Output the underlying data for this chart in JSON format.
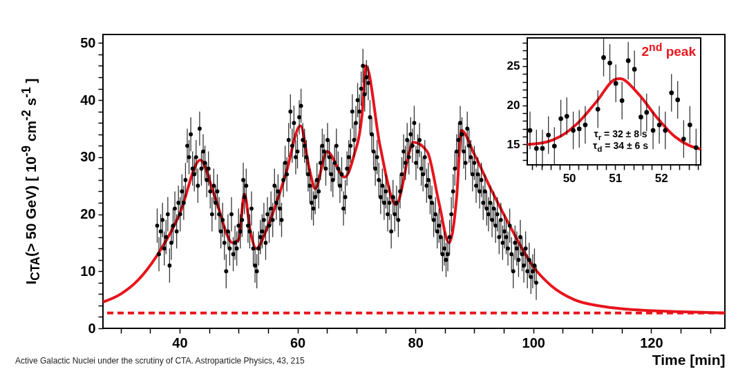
{
  "chart_data": [
    {
      "type": "scatter",
      "xlabel": "Time [min]",
      "ylabel": "I$_{CTA}$(> 50 GeV) [ 10$^{-9}$ cm$^{-2}$ s$^{-1}$ ]",
      "xlim": [
        27,
        132.5
      ],
      "ylim": [
        0,
        51.5
      ],
      "xticks": [
        {
          "value": 30,
          "label": null
        },
        {
          "value": 35,
          "label": null
        },
        40,
        {
          "value": 45,
          "label": null
        },
        {
          "value": 50,
          "label": null
        },
        {
          "value": 55,
          "label": null
        },
        60,
        {
          "value": 65,
          "label": null
        },
        {
          "value": 70,
          "label": null
        },
        {
          "value": 75,
          "label": null
        },
        80,
        {
          "value": 85,
          "label": null
        },
        {
          "value": 90,
          "label": null
        },
        {
          "value": 95,
          "label": null
        },
        100,
        {
          "value": 105,
          "label": null
        },
        {
          "value": 110,
          "label": null
        },
        {
          "value": 115,
          "label": null
        },
        120,
        {
          "value": 125,
          "label": null
        },
        {
          "value": 130,
          "label": null
        }
      ],
      "yticks": [
        0,
        {
          "value": 2,
          "label": null
        },
        {
          "value": 4,
          "label": null
        },
        {
          "value": 6,
          "label": null
        },
        {
          "value": 8,
          "label": null
        },
        10,
        {
          "value": 12,
          "label": null
        },
        {
          "value": 14,
          "label": null
        },
        {
          "value": 16,
          "label": null
        },
        {
          "value": 18,
          "label": null
        },
        20,
        {
          "value": 22,
          "label": null
        },
        {
          "value": 24,
          "label": null
        },
        {
          "value": 26,
          "label": null
        },
        {
          "value": 28,
          "label": null
        },
        30,
        {
          "value": 32,
          "label": null
        },
        {
          "value": 34,
          "label": null
        },
        {
          "value": 36,
          "label": null
        },
        {
          "value": 38,
          "label": null
        },
        40,
        {
          "value": 42,
          "label": null
        },
        {
          "value": 44,
          "label": null
        },
        {
          "value": 46,
          "label": null
        },
        {
          "value": 48,
          "label": null
        },
        50
      ],
      "series": [
        {
          "type": "scatter",
          "marker": "circle",
          "color": "#000000",
          "x": [
            36.2,
            36.5,
            36.8,
            37.1,
            37.4,
            37.7,
            38.0,
            38.3,
            38.6,
            38.9,
            39.2,
            39.5,
            39.8,
            40.1,
            40.4,
            40.7,
            41.0,
            41.3,
            41.6,
            41.9,
            42.2,
            42.5,
            42.8,
            43.1,
            43.4,
            43.7,
            44.0,
            44.3,
            44.6,
            44.9,
            45.2,
            45.5,
            45.8,
            46.1,
            46.4,
            46.7,
            47.0,
            47.3,
            47.6,
            47.9,
            48.2,
            48.5,
            48.8,
            49.1,
            49.4,
            49.7,
            50.0,
            50.3,
            50.6,
            50.8,
            51.0,
            51.3,
            51.6,
            51.9,
            52.2,
            52.5,
            52.8,
            53.1,
            53.4,
            53.7,
            54.0,
            54.3,
            54.6,
            54.9,
            55.2,
            55.5,
            55.8,
            56.1,
            56.4,
            56.7,
            57.0,
            57.3,
            57.6,
            57.9,
            58.2,
            58.5,
            58.8,
            59.1,
            59.4,
            59.7,
            60.0,
            60.3,
            60.6,
            60.9,
            61.2,
            61.5,
            61.8,
            62.1,
            62.4,
            62.7,
            63.0,
            63.3,
            63.6,
            63.9,
            64.2,
            64.5,
            64.8,
            65.1,
            65.4,
            65.7,
            66.0,
            66.3,
            66.6,
            66.9,
            67.2,
            67.5,
            67.8,
            68.1,
            68.4,
            68.7,
            69.0,
            69.3,
            69.6,
            69.9,
            70.2,
            70.5,
            70.8,
            71.1,
            71.4,
            71.7,
            72.0,
            72.3,
            72.6,
            72.9,
            73.2,
            73.5,
            73.8,
            74.1,
            74.4,
            74.7,
            75.0,
            75.3,
            75.6,
            75.9,
            76.2,
            76.5,
            76.8,
            77.1,
            77.4,
            77.7,
            78.0,
            78.3,
            78.6,
            78.9,
            79.2,
            79.5,
            79.8,
            80.1,
            80.4,
            80.7,
            81.0,
            81.3,
            81.6,
            81.9,
            82.2,
            82.5,
            82.8,
            83.1,
            83.4,
            83.7,
            84.0,
            84.3,
            84.6,
            84.9,
            85.2,
            85.5,
            85.8,
            86.1,
            86.4,
            86.7,
            87.0,
            87.3,
            87.6,
            87.9,
            88.2,
            88.5,
            88.8,
            89.1,
            89.4,
            89.7,
            90.0,
            90.3,
            90.6,
            90.9,
            91.2,
            91.5,
            91.8,
            92.1,
            92.4,
            92.7,
            93.0,
            93.3,
            93.6,
            93.9,
            94.2,
            94.5,
            94.8,
            95.1,
            95.4,
            95.7,
            96.0,
            96.3,
            96.6,
            96.9,
            97.2,
            97.5,
            97.8,
            98.1,
            98.4,
            98.7,
            99.0,
            99.3,
            99.6,
            99.9,
            100.2,
            100.5
          ],
          "values": [
            18,
            13,
            17,
            19,
            14,
            16,
            20,
            11,
            15,
            18,
            21,
            17,
            22,
            20,
            24,
            22,
            26,
            32,
            30,
            34,
            28,
            27,
            30,
            25,
            35,
            28,
            31,
            29,
            26,
            28,
            24,
            20,
            25,
            22,
            24,
            20,
            17,
            19,
            15,
            10,
            17,
            14,
            20,
            13,
            15,
            14,
            18,
            17,
            19,
            26,
            23,
            25,
            18,
            17,
            21,
            14,
            11,
            10,
            14,
            16,
            17,
            19,
            15,
            20,
            18,
            21,
            19,
            25,
            22,
            24,
            21,
            19,
            26,
            29,
            27,
            33,
            38,
            32,
            36,
            30,
            31,
            37,
            39,
            33,
            32,
            30,
            27,
            25,
            22,
            21,
            23,
            26,
            24,
            29,
            32,
            31,
            28,
            33,
            30,
            27,
            26,
            29,
            32,
            28,
            25,
            27,
            21,
            23,
            28,
            30,
            32,
            38,
            33,
            36,
            40,
            38,
            42,
            46,
            41,
            44,
            43,
            37,
            34,
            31,
            28,
            30,
            26,
            23,
            25,
            22,
            24,
            20,
            22,
            17,
            23,
            20,
            22,
            19,
            24,
            27,
            31,
            29,
            33,
            30,
            34,
            32,
            36,
            29,
            31,
            33,
            28,
            27,
            30,
            25,
            26,
            23,
            22,
            19,
            20,
            17,
            18,
            16,
            13,
            14,
            12,
            13,
            16,
            20,
            24,
            28,
            31,
            33,
            36,
            34,
            31,
            29,
            35,
            32,
            30,
            27,
            29,
            25,
            27,
            24,
            26,
            22,
            24,
            21,
            20,
            22,
            19,
            21,
            18,
            20,
            16,
            19,
            15,
            17,
            16,
            14,
            18,
            13,
            10,
            15,
            14,
            12,
            16,
            13,
            11,
            14,
            10,
            12,
            9,
            10,
            11,
            8
          ],
          "errors": [
            3,
            3,
            3,
            3,
            3,
            3,
            3,
            3,
            3,
            3,
            3,
            3,
            3,
            3,
            3,
            3,
            3,
            3,
            3,
            3,
            3,
            3,
            3,
            3,
            3,
            3,
            3,
            3,
            3,
            3,
            3,
            3,
            3,
            3,
            3,
            3,
            3,
            3,
            3,
            3,
            3,
            3,
            3,
            3,
            3,
            3,
            3,
            3,
            3,
            3,
            3,
            3,
            3,
            3,
            3,
            3,
            3,
            3,
            3,
            3,
            3,
            3,
            3,
            3,
            3,
            3,
            3,
            3,
            3,
            3,
            3,
            3,
            3,
            3,
            3,
            3,
            3,
            3,
            3,
            3,
            3,
            3,
            3,
            3,
            3,
            3,
            3,
            3,
            3,
            3,
            3,
            3,
            3,
            3,
            3,
            3,
            3,
            3,
            3,
            3,
            3,
            3,
            3,
            3,
            3,
            3,
            3,
            3,
            3,
            3,
            3,
            3,
            3,
            3,
            3,
            3,
            3,
            3,
            3,
            3,
            3,
            3,
            3,
            3,
            3,
            3,
            3,
            3,
            3,
            3,
            3,
            3,
            3,
            3,
            3,
            3,
            3,
            3,
            3,
            3,
            3,
            3,
            3,
            3,
            3,
            3,
            3,
            3,
            3,
            3,
            3,
            3,
            3,
            3,
            3,
            3,
            3,
            3,
            3,
            3,
            3,
            3,
            3,
            3,
            3,
            3,
            3,
            3,
            3,
            3,
            3,
            3,
            3,
            3,
            3,
            3,
            3,
            3,
            3,
            3,
            3,
            3,
            3,
            3,
            3,
            3,
            3,
            3,
            3,
            3,
            3,
            3,
            3,
            3,
            3,
            3,
            3,
            3,
            3,
            3,
            3,
            3,
            3,
            3,
            3,
            3,
            3,
            3,
            3,
            3,
            3,
            3,
            3,
            3,
            3,
            3
          ]
        },
        {
          "type": "line",
          "color": "#e8141c",
          "x": [
            27,
            30,
            33,
            36,
            40,
            43.5,
            46,
            49,
            50,
            51,
            52,
            53,
            55,
            58,
            60.5,
            62,
            63,
            65,
            68,
            69.5,
            71,
            71.6,
            74,
            76.7,
            79.7,
            82,
            84,
            85.7,
            87,
            87.8,
            90,
            93,
            96,
            100,
            103,
            107,
            112,
            118,
            125,
            132.5
          ],
          "values": [
            4.6,
            6,
            8.5,
            12.5,
            20,
            29.5,
            23,
            15,
            15.5,
            23.5,
            17,
            14,
            18,
            27,
            35.5,
            28,
            24.5,
            31,
            26.5,
            30,
            38,
            46,
            32,
            21.7,
            32.6,
            31,
            22,
            15,
            23,
            34.7,
            30.5,
            24,
            18,
            10.8,
            7.5,
            5,
            3.8,
            3.2,
            2.9,
            2.7
          ]
        }
      ],
      "ref_lines": [
        {
          "axis": "y",
          "value": 2.7,
          "color": "#e8141c",
          "line_style": "dashed"
        }
      ],
      "annotations": [
        "Active Galactic Nuclei under the scrutiny of CTA. Astroparticle Physics, 43, 215"
      ]
    },
    {
      "type": "scatter",
      "xlim": [
        49.09,
        52.86
      ],
      "ylim": [
        12.4,
        28.6
      ],
      "xticks": [
        {
          "value": 49.2,
          "label": null
        },
        {
          "value": 49.4,
          "label": null
        },
        {
          "value": 49.6,
          "label": null
        },
        {
          "value": 49.8,
          "label": null
        },
        50,
        {
          "value": 50.2,
          "label": null
        },
        {
          "value": 50.4,
          "label": null
        },
        {
          "value": 50.6,
          "label": null
        },
        {
          "value": 50.8,
          "label": null
        },
        51,
        {
          "value": 51.2,
          "label": null
        },
        {
          "value": 51.4,
          "label": null
        },
        {
          "value": 51.6,
          "label": null
        },
        {
          "value": 51.8,
          "label": null
        },
        52,
        {
          "value": 52.2,
          "label": null
        },
        {
          "value": 52.4,
          "label": null
        },
        {
          "value": 52.6,
          "label": null
        },
        {
          "value": 52.8,
          "label": null
        }
      ],
      "yticks": [
        {
          "value": 13,
          "label": null
        },
        {
          "value": 14,
          "label": null
        },
        15,
        {
          "value": 16,
          "label": null
        },
        {
          "value": 17,
          "label": null
        },
        {
          "value": 18,
          "label": null
        },
        {
          "value": 19,
          "label": null
        },
        20,
        {
          "value": 21,
          "label": null
        },
        {
          "value": 22,
          "label": null
        },
        {
          "value": 23,
          "label": null
        },
        {
          "value": 24,
          "label": null
        },
        25,
        {
          "value": 26,
          "label": null
        },
        {
          "value": 27,
          "label": null
        },
        {
          "value": 28,
          "label": null
        }
      ],
      "series": [
        {
          "type": "scatter",
          "marker": "circle",
          "color": "#000000",
          "x": [
            49.15,
            49.29,
            49.42,
            49.55,
            49.68,
            49.82,
            49.95,
            50.09,
            50.22,
            50.35,
            50.625,
            50.75,
            50.885,
            51.015,
            51.15,
            51.285,
            51.42,
            51.56,
            51.685,
            51.825,
            51.96,
            52.09,
            52.225,
            52.36,
            52.49,
            52.625,
            52.76
          ],
          "values": [
            16.8,
            14.5,
            14.5,
            16.2,
            14.8,
            18.3,
            18.6,
            16.8,
            17.0,
            17.5,
            19.5,
            26.1,
            25.4,
            22.8,
            20.6,
            25.7,
            24.6,
            18.5,
            19.1,
            16.8,
            17.5,
            16.8,
            21.6,
            20.7,
            15.7,
            17.5,
            14.6
          ],
          "errors": [
            2.4,
            2.4,
            2.4,
            2.4,
            2.4,
            2.4,
            2.4,
            2.4,
            2.4,
            2.4,
            2.4,
            2.4,
            2.4,
            2.4,
            2.4,
            2.4,
            2.4,
            2.4,
            2.4,
            2.4,
            2.4,
            2.4,
            2.4,
            2.4,
            2.4,
            2.4,
            2.4
          ]
        },
        {
          "type": "line",
          "color": "#e8141c",
          "x": [
            49.09,
            49.5,
            49.8,
            50.2,
            50.6,
            51.0,
            51.1,
            51.5,
            51.9,
            52.3,
            52.6,
            52.86
          ],
          "values": [
            15.0,
            15.3,
            16,
            17.8,
            20.5,
            23.3,
            23.4,
            21.5,
            18.5,
            16,
            14.9,
            14.4
          ]
        }
      ],
      "annotations": [
        "2$^{nd}$ peak",
        "τ$_{r}$ = 32 ± 8 s",
        "τ$_{d}$ = 34 ± 6 s"
      ]
    }
  ]
}
